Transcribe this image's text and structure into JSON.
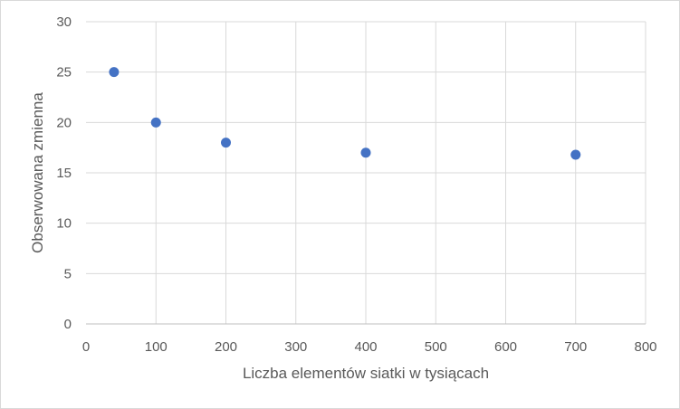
{
  "chart_data": {
    "type": "scatter",
    "title": "",
    "xlabel": "Liczba elementów siatki w tysiącach",
    "ylabel": "Obserwowana zmienna",
    "xlim": [
      0,
      800
    ],
    "ylim": [
      0,
      30
    ],
    "xticks": [
      0,
      100,
      200,
      300,
      400,
      500,
      600,
      700,
      800
    ],
    "yticks": [
      0,
      5,
      10,
      15,
      20,
      25,
      30
    ],
    "xtick_labels": [
      "0",
      "100",
      "200",
      "300",
      "400",
      "500",
      "600",
      "700",
      "800"
    ],
    "ytick_labels": [
      "0",
      "5",
      "10",
      "15",
      "20",
      "25",
      "30"
    ],
    "grid": true,
    "legend": "none",
    "marker_color": "#4472c4",
    "grid_color": "#d9d9d9",
    "series": [
      {
        "x": [
          40,
          100,
          200,
          400,
          700
        ],
        "y": [
          25,
          20,
          18,
          17,
          16.8
        ]
      }
    ]
  }
}
